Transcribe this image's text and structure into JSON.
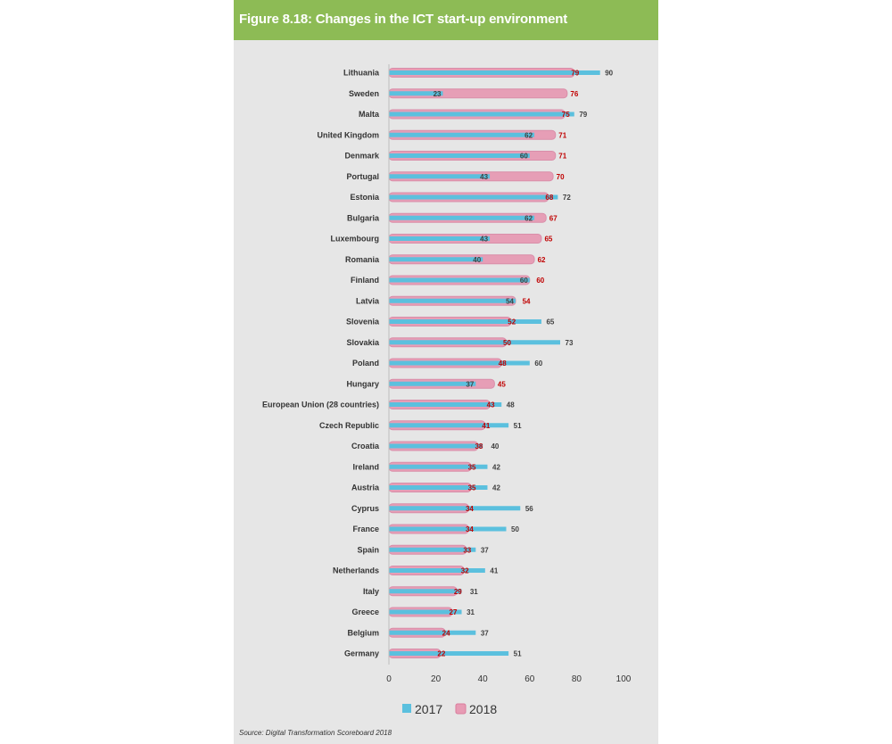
{
  "figure": {
    "title": "Figure 8.18: Changes in the ICT start-up environment",
    "source": "Source: Digital Transformation Scoreboard 2018"
  },
  "colors": {
    "header": "#8dbb55",
    "panel": "#e6e6e6",
    "series_2017": "#5bc0de",
    "series_2018": "#e79bb4",
    "label_2018": "#c00000"
  },
  "chart_data": {
    "type": "bar",
    "orientation": "horizontal",
    "categories": [
      "Lithuania",
      "Sweden",
      "Malta",
      "United Kingdom",
      "Denmark",
      "Portugal",
      "Estonia",
      "Bulgaria",
      "Luxembourg",
      "Romania",
      "Finland",
      "Latvia",
      "Slovenia",
      "Slovakia",
      "Poland",
      "Hungary",
      "European Union (28 countries)",
      "Czech Republic",
      "Croatia",
      "Ireland",
      "Austria",
      "Cyprus",
      "France",
      "Spain",
      "Netherlands",
      "Italy",
      "Greece",
      "Belgium",
      "Germany"
    ],
    "series": [
      {
        "name": "2017",
        "values": [
          90,
          23,
          79,
          62,
          60,
          43,
          72,
          62,
          43,
          40,
          60,
          54,
          65,
          73,
          60,
          37,
          48,
          51,
          40,
          42,
          42,
          56,
          50,
          37,
          41,
          31,
          31,
          37,
          51
        ]
      },
      {
        "name": "2018",
        "values": [
          79,
          76,
          75,
          71,
          71,
          70,
          68,
          67,
          65,
          62,
          60,
          54,
          52,
          50,
          48,
          45,
          43,
          41,
          38,
          35,
          35,
          34,
          34,
          33,
          32,
          29,
          27,
          24,
          22
        ]
      }
    ],
    "xlim": [
      0,
      100
    ],
    "xticks": [
      "0",
      "20",
      "40",
      "60",
      "80",
      "100"
    ],
    "legend": "bottom",
    "grid": false
  }
}
